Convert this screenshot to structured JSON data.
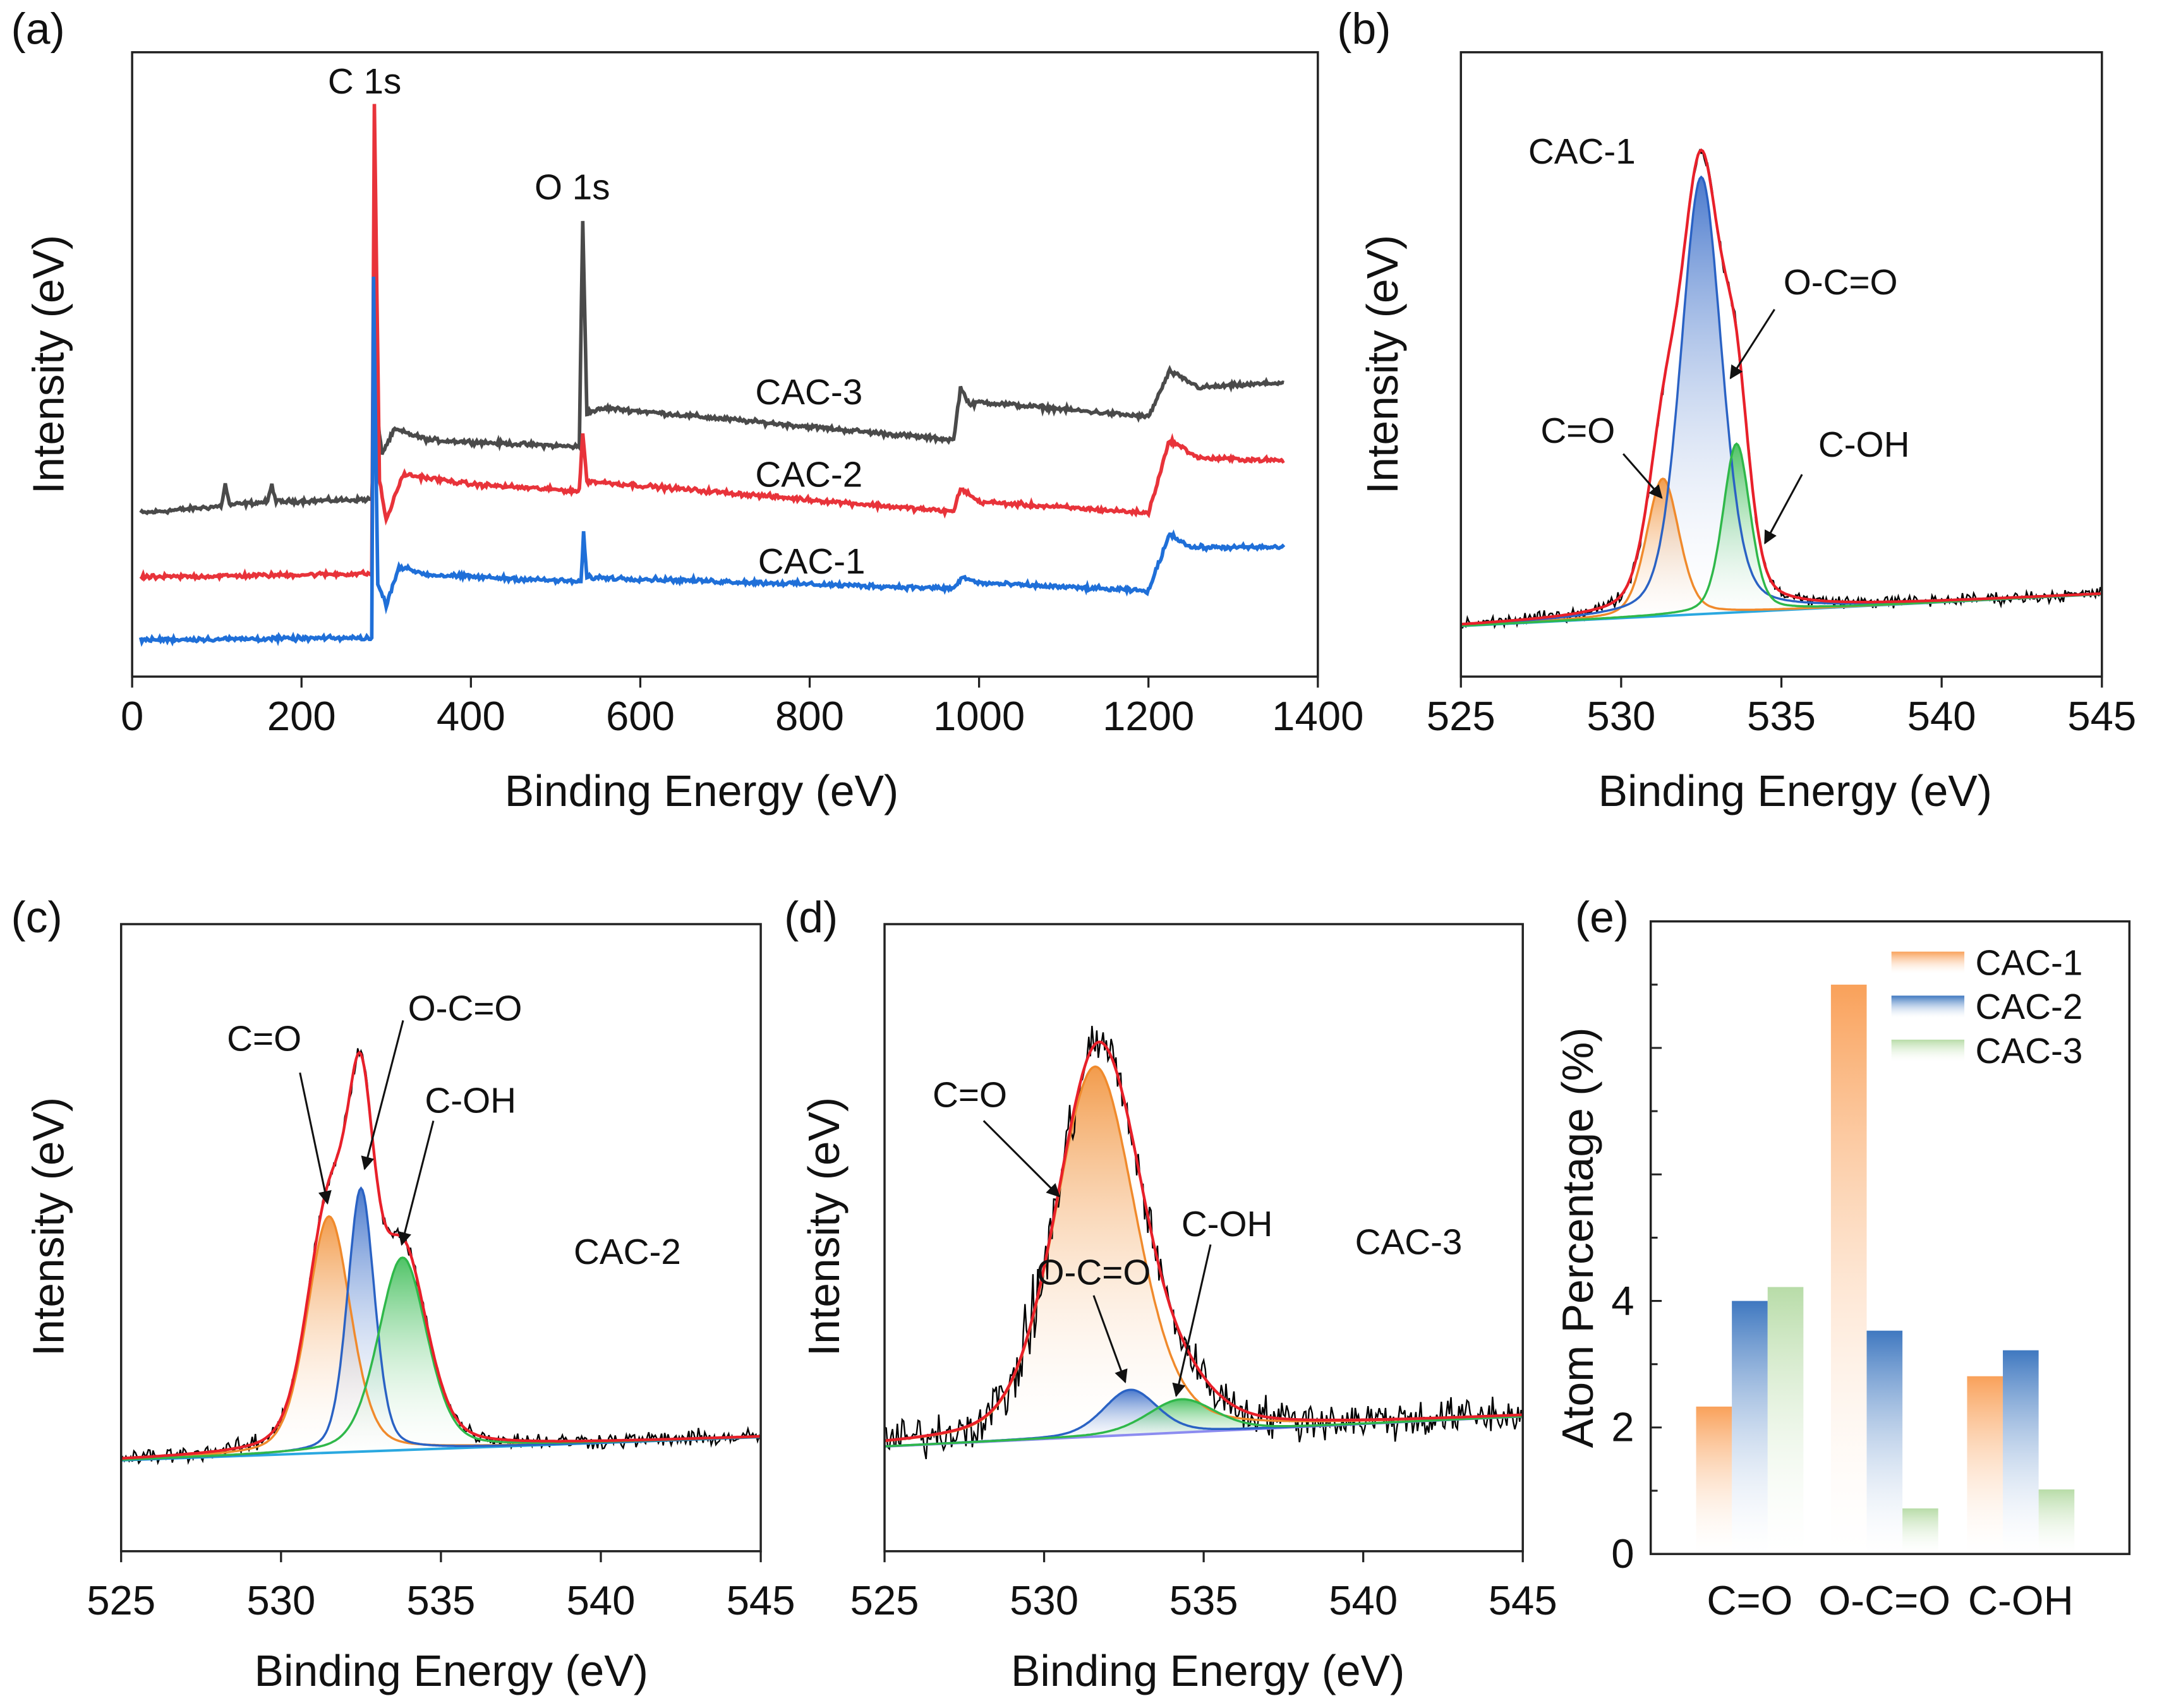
{
  "colors": {
    "CAC-1_survey": "#1f6fd8",
    "CAC-2_survey": "#e8333a",
    "CAC-3_survey": "#4a4a4a",
    "envelope": "#e8202a",
    "raw": "#000000",
    "C=O": "#f08a2c",
    "O-C=O": "#2a62c4",
    "C-OH": "#2fb84a",
    "baseline_b": "#2aa8e0",
    "baseline_c": "#2aa8e0",
    "baseline_d": "#8c8cf0",
    "bar_CAC-1": "#f9a15a",
    "bar_CAC-2": "#3f78c0",
    "bar_CAC-3": "#b8dca8"
  },
  "chart_data": [
    {
      "panel": "(a)",
      "type": "line",
      "xlabel": "Binding Energy (eV)",
      "ylabel": "Intensity (eV)",
      "xlim": [
        0,
        1400
      ],
      "xticks": [
        "0",
        "200",
        "400",
        "600",
        "800",
        "1000",
        "1200",
        "1400"
      ],
      "ylim": [
        0,
        100
      ],
      "yticks": [],
      "annotations": [
        "C 1s",
        "O 1s"
      ],
      "series": [
        {
          "name": "CAC-3",
          "points": [
            [
              10,
              26.2
            ],
            [
              105,
              27.3
            ],
            [
              110,
              30.8
            ],
            [
              115,
              27.5
            ],
            [
              160,
              28
            ],
            [
              165,
              30.8
            ],
            [
              170,
              28
            ],
            [
              283,
              28.4
            ],
            [
              287,
              44.5
            ],
            [
              295,
              35.7
            ],
            [
              310,
              39.6
            ],
            [
              350,
              37.9
            ],
            [
              528,
              36.8
            ],
            [
              532,
              73.1
            ],
            [
              537,
              42.3
            ],
            [
              560,
              43
            ],
            [
              970,
              37.9
            ],
            [
              978,
              46.3
            ],
            [
              990,
              43.4
            ],
            [
              1000,
              44
            ],
            [
              1200,
              41.6
            ],
            [
              1225,
              48.9
            ],
            [
              1260,
              46.3
            ],
            [
              1360,
              47.1
            ]
          ]
        },
        {
          "name": "CAC-2",
          "points": [
            [
              10,
              15.9
            ],
            [
              283,
              16.5
            ],
            [
              286,
              91.9
            ],
            [
              292,
              31.3
            ],
            [
              300,
              25.1
            ],
            [
              320,
              32.4
            ],
            [
              400,
              30.8
            ],
            [
              528,
              29.7
            ],
            [
              532,
              39
            ],
            [
              537,
              31.3
            ],
            [
              970,
              26.4
            ],
            [
              978,
              30.2
            ],
            [
              1000,
              28
            ],
            [
              1200,
              26.2
            ],
            [
              1225,
              37.9
            ],
            [
              1260,
              35
            ],
            [
              1360,
              34.6
            ]
          ]
        },
        {
          "name": "CAC-1",
          "points": [
            [
              10,
              5.9
            ],
            [
              283,
              6.2
            ],
            [
              285,
              64
            ],
            [
              290,
              14.8
            ],
            [
              300,
              11.5
            ],
            [
              315,
              17.6
            ],
            [
              350,
              16.3
            ],
            [
              530,
              15.2
            ],
            [
              533,
              22.9
            ],
            [
              537,
              15.9
            ],
            [
              970,
              14.1
            ],
            [
              980,
              15.9
            ],
            [
              1000,
              15
            ],
            [
              1200,
              13.7
            ],
            [
              1225,
              22.9
            ],
            [
              1250,
              20.7
            ],
            [
              1360,
              20.7
            ]
          ]
        }
      ]
    },
    {
      "panel": "(b)",
      "type": "line",
      "sample": "CAC-1",
      "xlabel": "Binding Energy (eV)",
      "ylabel": "Intensity (eV)",
      "xlim": [
        525,
        545
      ],
      "xticks": [
        "525",
        "530",
        "535",
        "540",
        "545"
      ],
      "ylim": [
        0,
        100
      ],
      "baseline": [
        8.1,
        13.2
      ],
      "peaks": [
        {
          "name": "C=O",
          "center": 531.3,
          "fwhm": 1.2,
          "height": 22
        },
        {
          "name": "O-C=O",
          "center": 532.5,
          "fwhm": 1.5,
          "height": 70
        },
        {
          "name": "C-OH",
          "center": 533.6,
          "fwhm": 1.0,
          "height": 27
        }
      ],
      "noise": 1.0
    },
    {
      "panel": "(c)",
      "type": "line",
      "sample": "CAC-2",
      "xlabel": "Binding Energy (eV)",
      "ylabel": "Intensity (eV)",
      "xlim": [
        525,
        545
      ],
      "xticks": [
        "525",
        "530",
        "535",
        "540",
        "545"
      ],
      "ylim": [
        0,
        100
      ],
      "baseline": [
        14.5,
        18.2
      ],
      "peaks": [
        {
          "name": "C=O",
          "center": 531.5,
          "fwhm": 1.6,
          "height": 37.7
        },
        {
          "name": "O-C=O",
          "center": 532.5,
          "fwhm": 1.0,
          "height": 42
        },
        {
          "name": "C-OH",
          "center": 533.8,
          "fwhm": 1.8,
          "height": 30.7
        }
      ],
      "noise": 1.3
    },
    {
      "panel": "(d)",
      "type": "line",
      "sample": "CAC-3",
      "xlabel": "Binding Energy (eV)",
      "ylabel": "Intensity (eV)",
      "xlim": [
        525,
        545
      ],
      "xticks": [
        "525",
        "530",
        "535",
        "540",
        "545"
      ],
      "ylim": [
        0,
        100
      ],
      "baseline": [
        16.7,
        21.5
      ],
      "peaks": [
        {
          "name": "C=O",
          "center": 531.6,
          "fwhm": 3.0,
          "height": 59
        },
        {
          "name": "O-C=O",
          "center": 532.7,
          "fwhm": 2.0,
          "height": 7.2
        },
        {
          "name": "C-OH",
          "center": 534.3,
          "fwhm": 2.5,
          "height": 5.3
        }
      ],
      "noise": 3.2
    },
    {
      "panel": "(e)",
      "type": "bar",
      "ylabel": "Atom Percentage (%)",
      "categories": [
        "C=O",
        "O-C=O",
        "C-OH"
      ],
      "ylim": [
        0,
        10
      ],
      "yticks": [
        "0",
        "2",
        "4"
      ],
      "legend": "top-right",
      "series": [
        {
          "name": "CAC-1",
          "values": [
            2.33,
            9.0,
            2.81
          ]
        },
        {
          "name": "CAC-2",
          "values": [
            4.0,
            3.53,
            3.22
          ]
        },
        {
          "name": "CAC-3",
          "values": [
            4.22,
            0.72,
            1.02
          ]
        }
      ]
    }
  ]
}
